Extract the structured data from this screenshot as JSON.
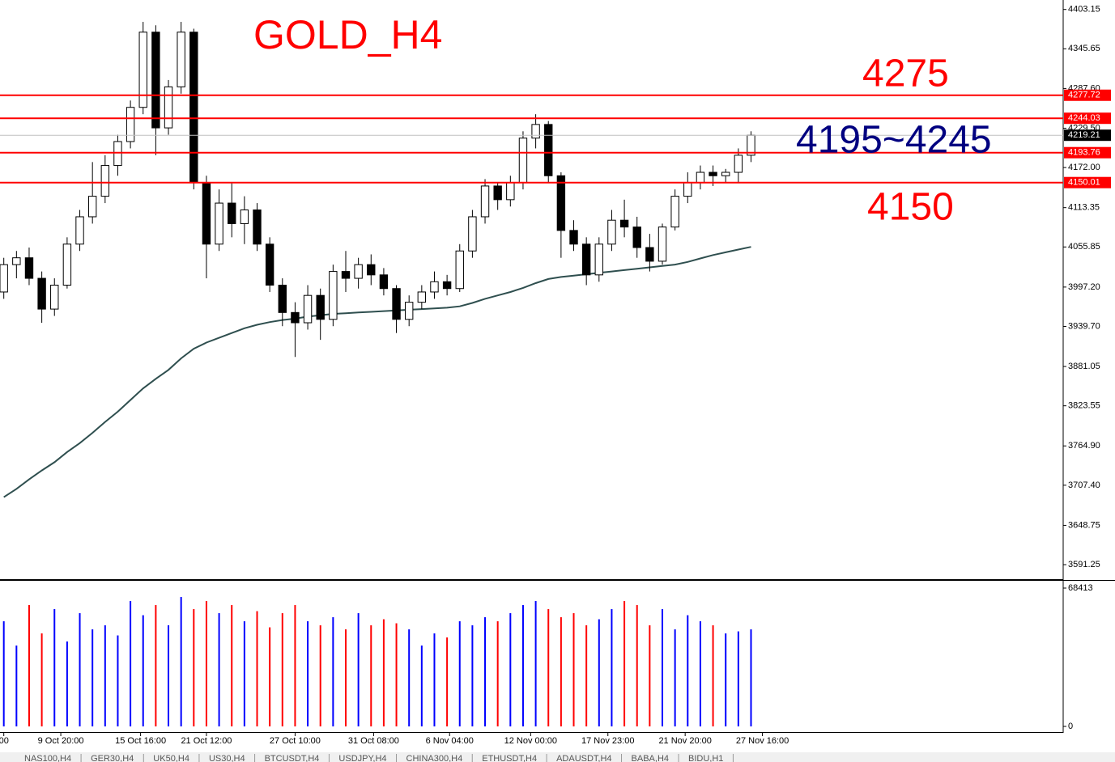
{
  "chart_data": [
    {
      "type": "candlestick",
      "title": "GOLD_H4",
      "title_color": "#ff0000",
      "open": [
        3990,
        4030,
        4040,
        4010,
        3965,
        4000,
        4060,
        4100,
        4130,
        4175,
        4210,
        4260,
        4370,
        4230,
        4290,
        4370,
        4150,
        4060,
        4120,
        4090,
        4110,
        4060,
        4000,
        3960,
        3945,
        3985,
        3950,
        4020,
        4010,
        4030,
        4015,
        3995,
        3950,
        3975,
        3990,
        4005,
        3995,
        4050,
        4100,
        4145,
        4125,
        4150,
        4215,
        4235,
        4160,
        4080,
        4060,
        4015,
        4060,
        4095,
        4085,
        4055,
        4035,
        4085,
        4130,
        4150,
        4165,
        4160,
        4165,
        4190
      ],
      "high": [
        4040,
        4050,
        4055,
        4020,
        4010,
        4070,
        4110,
        4180,
        4190,
        4220,
        4270,
        4385,
        4380,
        4300,
        4385,
        4375,
        4160,
        4140,
        4150,
        4130,
        4120,
        4070,
        4010,
        3975,
        4000,
        3995,
        4030,
        4050,
        4040,
        4045,
        4025,
        4000,
        3985,
        4000,
        4020,
        4015,
        4060,
        4110,
        4155,
        4150,
        4160,
        4225,
        4250,
        4240,
        4165,
        4095,
        4070,
        4070,
        4110,
        4125,
        4100,
        4075,
        4090,
        4140,
        4165,
        4175,
        4175,
        4170,
        4200,
        4225
      ],
      "low": [
        3980,
        4010,
        4000,
        3945,
        3955,
        3995,
        4050,
        4090,
        4120,
        4160,
        4200,
        4250,
        4190,
        4220,
        4280,
        4140,
        4010,
        4050,
        4070,
        4060,
        4050,
        3990,
        3940,
        3895,
        3935,
        3920,
        3940,
        3990,
        3995,
        4000,
        3985,
        3930,
        3940,
        3965,
        3980,
        3985,
        3990,
        4040,
        4090,
        4110,
        4115,
        4140,
        4200,
        4150,
        4040,
        4050,
        4000,
        4005,
        4050,
        4070,
        4040,
        4020,
        4030,
        4080,
        4120,
        4140,
        4145,
        4150,
        4150,
        4180
      ],
      "close": [
        4030,
        4040,
        4010,
        3965,
        4000,
        4060,
        4100,
        4130,
        4175,
        4210,
        4260,
        4370,
        4230,
        4290,
        4370,
        4150,
        4060,
        4120,
        4090,
        4110,
        4060,
        4000,
        3960,
        3945,
        3985,
        3950,
        4020,
        4010,
        4030,
        4015,
        3995,
        3950,
        3975,
        3990,
        4005,
        3995,
        4050,
        4100,
        4145,
        4125,
        4150,
        4215,
        4235,
        4160,
        4080,
        4060,
        4015,
        4060,
        4095,
        4085,
        4055,
        4035,
        4085,
        4130,
        4150,
        4165,
        4160,
        4165,
        4190,
        4219.21
      ],
      "up_color": "#ffffff",
      "down_color": "#000000",
      "wick_color": "#000000",
      "ma": {
        "color": "#2f4f4f",
        "values": [
          3690,
          3702,
          3716,
          3729,
          3741,
          3756,
          3769,
          3784,
          3800,
          3815,
          3832,
          3849,
          3863,
          3876,
          3893,
          3907,
          3916,
          3923,
          3930,
          3937,
          3942,
          3946,
          3949,
          3951,
          3954,
          3956,
          3958,
          3959,
          3960,
          3961,
          3962,
          3963,
          3964,
          3965,
          3966,
          3967,
          3969,
          3974,
          3980,
          3985,
          3990,
          3996,
          4003,
          4009,
          4012,
          4014,
          4016,
          4018,
          4020,
          4022,
          4024,
          4026,
          4028,
          4030,
          4034,
          4039,
          4044,
          4048,
          4052,
          4056
        ]
      },
      "ylim": [
        3570,
        4417
      ],
      "yticks": [
        4403.15,
        4345.65,
        {
          "value": 4287.6,
          "label": "4287.60"
        },
        {
          "value": 4229.5,
          "label": "4229.50"
        },
        {
          "value": 4172,
          "label": "4172.00"
        },
        4113.35,
        4055.85,
        {
          "value": 3997.2,
          "label": "3997.20"
        },
        {
          "value": 3939.7,
          "label": "3939.70"
        },
        3881.05,
        3823.55,
        {
          "value": 3764.9,
          "label": "3764.90"
        },
        {
          "value": 3707.4,
          "label": "3707.40"
        },
        3648.75,
        3591.25
      ],
      "xlim": [
        -0.3,
        59.8
      ],
      "xticks": [
        {
          "value": 0,
          "label": "00"
        },
        {
          "value": 4.5,
          "label": "9 Oct 20:00"
        },
        {
          "value": 10.8,
          "label": "15 Oct 16:00"
        },
        {
          "value": 16,
          "label": "21 Oct 12:00"
        },
        {
          "value": 23,
          "label": "27 Oct 10:00"
        },
        {
          "value": 29.2,
          "label": "31 Oct 08:00"
        },
        {
          "value": 35.2,
          "label": "6 Nov 04:00"
        },
        {
          "value": 41.6,
          "label": "12 Nov 00:00"
        },
        {
          "value": 47.7,
          "label": "17 Nov 23:00"
        },
        {
          "value": 53.8,
          "label": "21 Nov 20:00"
        },
        {
          "value": 59.9,
          "label": "27 Nov 16:00"
        }
      ],
      "hlines": [
        {
          "value": 4277.72,
          "color": "#ff0000"
        },
        {
          "value": 4244.03,
          "color": "#ff0000"
        },
        {
          "value": 4193.76,
          "color": "#ff0000"
        },
        {
          "value": 4150.01,
          "color": "#ff0000"
        }
      ],
      "price_line": {
        "value": 4219.21,
        "color": "#c0c0c0"
      },
      "annotations": [
        {
          "text": "4275",
          "color": "#ff0000"
        },
        {
          "text": "4195~4245",
          "color": "#000080"
        },
        {
          "text": "4150",
          "color": "#ff0000"
        }
      ]
    },
    {
      "type": "bar",
      "values": [
        52000,
        40000,
        60000,
        46000,
        58000,
        42000,
        56000,
        48000,
        50000,
        45000,
        62000,
        55000,
        60000,
        50000,
        64000,
        58000,
        62000,
        56000,
        60000,
        52000,
        57000,
        49000,
        56000,
        60000,
        52000,
        50000,
        54000,
        48000,
        56000,
        50000,
        53000,
        51000,
        48000,
        40000,
        46000,
        44000,
        52000,
        50000,
        54000,
        52000,
        56000,
        60000,
        62000,
        58000,
        54000,
        56000,
        50000,
        53000,
        58000,
        62000,
        60000,
        50000,
        58000,
        48000,
        55000,
        52000,
        50000,
        46000,
        47000,
        48000
      ],
      "up_color": "#0000ff",
      "down_color": "#ff0000",
      "ylim": [
        0,
        68413
      ],
      "yticks": [
        68413,
        0
      ]
    }
  ],
  "tabs": [
    "NAS100,H4",
    "GER30,H4",
    "UK50,H4",
    "US30,H4",
    "BTCUSDT,H4",
    "USDJPY,H4",
    "CHINA300,H4",
    "ETHUSDT,H4",
    "ADAUSDT,H4",
    "BABA,H4",
    "BIDU,H1"
  ]
}
